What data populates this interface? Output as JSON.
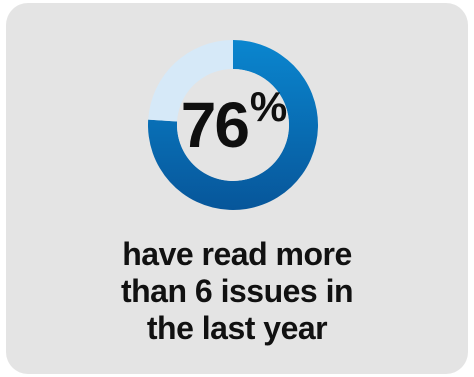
{
  "chart_data": {
    "type": "pie",
    "variant": "donut",
    "values": [
      76,
      24
    ],
    "labels": [
      "",
      ""
    ],
    "colors": [
      "#0a6fb8",
      "#d6e9f8"
    ],
    "center_value": "76",
    "center_unit": "%",
    "caption_lines": [
      "have read more",
      "than 6 issues in",
      "the last year"
    ]
  }
}
